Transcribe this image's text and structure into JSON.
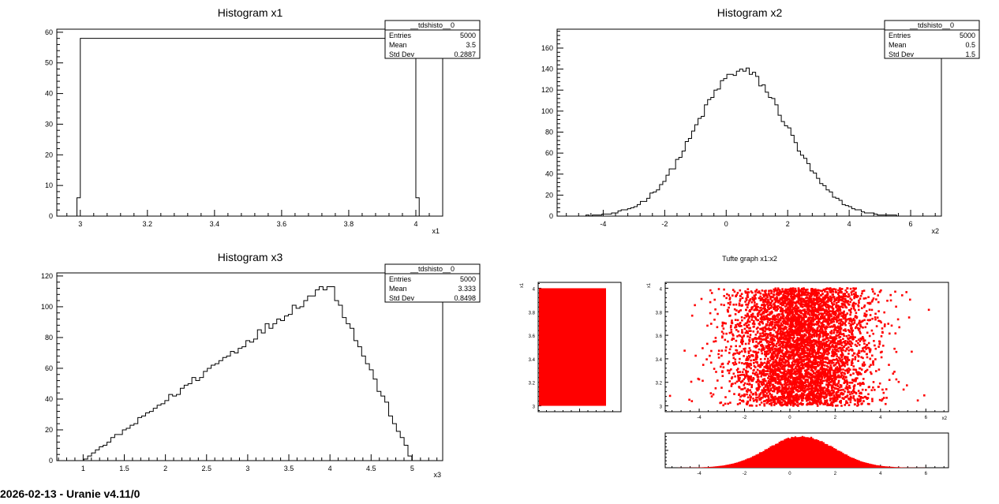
{
  "footer": "2026-02-13 - Uranie v4.11/0",
  "colors": {
    "line": "#000000",
    "fill": "#ff0000"
  },
  "chart_data": [
    {
      "type": "bar",
      "title": "Histogram x1",
      "xlabel": "x1",
      "xlim": [
        2.93,
        4.08
      ],
      "ylim": [
        0,
        61
      ],
      "xticks": [
        3,
        3.2,
        3.4,
        3.6,
        3.8,
        4
      ],
      "yticks": [
        0,
        10,
        20,
        30,
        40,
        50,
        60
      ],
      "stats": {
        "name": "__tdshisto__0",
        "entries": "5000",
        "mean": "3.5",
        "std_dev": "0.2887"
      },
      "stats_labels": {
        "entries": "Entries",
        "mean": "Mean",
        "std_dev": "Std Dev"
      }
    },
    {
      "type": "bar",
      "title": "Histogram x2",
      "xlabel": "x2",
      "xlim": [
        -5.5,
        7
      ],
      "ylim": [
        0,
        178
      ],
      "xticks": [
        -4,
        -2,
        0,
        2,
        4,
        6
      ],
      "yticks": [
        0,
        20,
        40,
        60,
        80,
        100,
        120,
        140,
        160
      ],
      "stats": {
        "name": "__tdshisto__0",
        "entries": "5000",
        "mean": "0.5",
        "std_dev": "1.5"
      },
      "stats_labels": {
        "entries": "Entries",
        "mean": "Mean",
        "std_dev": "Std Dev"
      }
    },
    {
      "type": "bar",
      "title": "Histogram x3",
      "xlabel": "x3",
      "xlim": [
        0.68,
        5.37
      ],
      "ylim": [
        0,
        122
      ],
      "xticks": [
        1,
        1.5,
        2,
        2.5,
        3,
        3.5,
        4,
        4.5,
        5
      ],
      "yticks": [
        0,
        20,
        40,
        60,
        80,
        100,
        120
      ],
      "stats": {
        "name": "__tdshisto__0",
        "entries": "5000",
        "mean": "3.333",
        "std_dev": "0.8498"
      },
      "stats_labels": {
        "entries": "Entries",
        "mean": "Mean",
        "std_dev": "Std Dev"
      }
    },
    {
      "type": "scatter",
      "title": "Tufte graph x1:x2",
      "xlabel": "x2",
      "ylabel": "x1",
      "x_range": [
        -5.5,
        7
      ],
      "y_range": [
        2.95,
        4.05
      ],
      "xticks": [
        -4,
        -2,
        0,
        2,
        4,
        6
      ],
      "yticks": [
        3,
        3.2,
        3.4,
        3.6,
        3.8,
        4
      ],
      "marginal_yticks": [
        3,
        3.2,
        3.4,
        3.6,
        3.8,
        4
      ],
      "x1_distribution": "uniform(3, 4)",
      "x2_distribution": "normal(mean 0.5, std 1.5)",
      "n_points": 5000
    }
  ]
}
